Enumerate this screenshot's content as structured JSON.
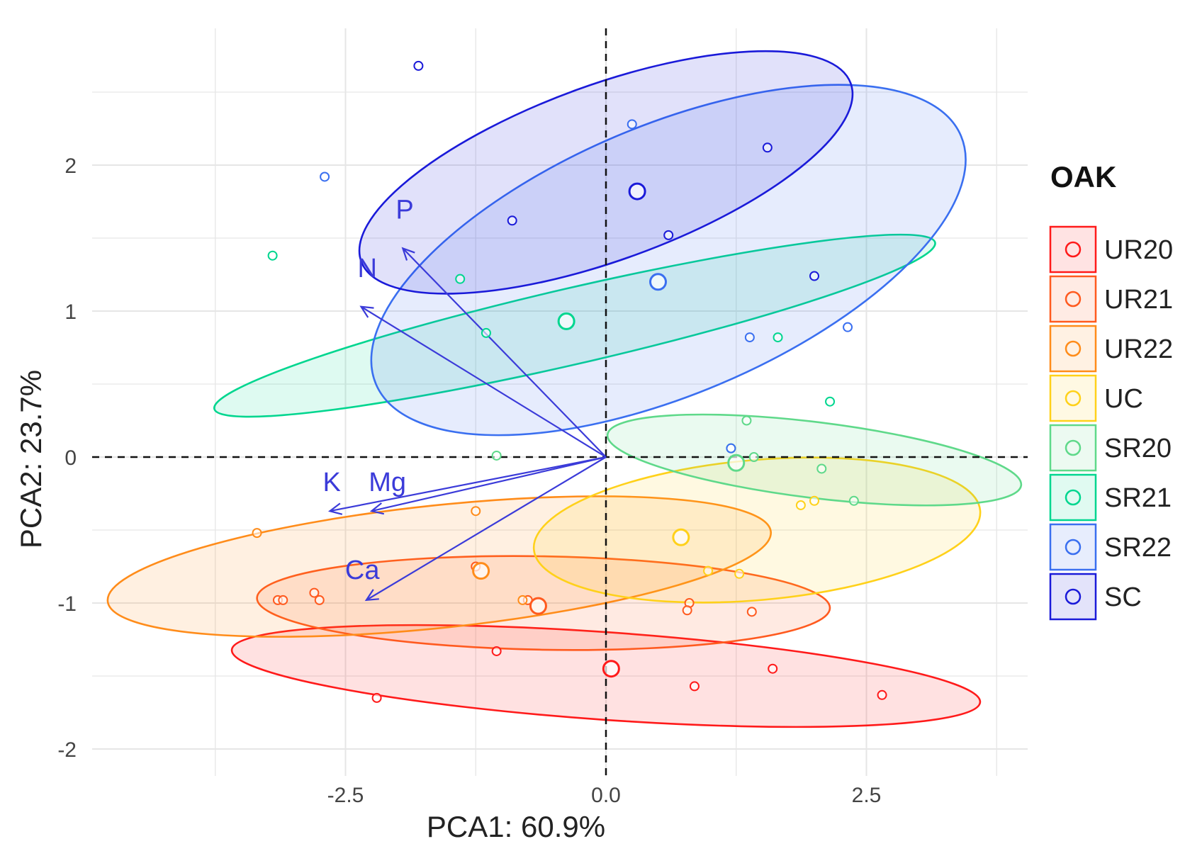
{
  "chart_data": {
    "type": "scatter",
    "xlabel": "PCA1: 60.9%",
    "ylabel": "PCA2: 23.7%",
    "xlim": [
      -4.9,
      4.1
    ],
    "ylim": [
      -2.1,
      2.9
    ],
    "x_ticks": [
      -2.5,
      0.0,
      2.5
    ],
    "x_tick_labels": [
      "-2.5",
      "0.0",
      "2.5"
    ],
    "y_ticks": [
      -2,
      -1,
      0,
      1,
      2
    ],
    "y_tick_labels": [
      "-2",
      "-1",
      "0",
      "1",
      "2"
    ],
    "grid": true,
    "legend": {
      "title": "OAK",
      "position": "right"
    },
    "series": [
      {
        "name": "UR20",
        "color": "#ff1a1a",
        "points": [
          [
            2.65,
            -1.63
          ],
          [
            0.85,
            -1.57
          ],
          [
            1.6,
            -1.45
          ],
          [
            -2.2,
            -1.65
          ],
          [
            -1.05,
            -1.33
          ]
        ],
        "centroid": [
          0.05,
          -1.45
        ],
        "ellipse": {
          "cx": 0.0,
          "cy": -1.5,
          "rx": 3.6,
          "ry": 0.3,
          "angle": -4
        }
      },
      {
        "name": "UR21",
        "color": "#ff5a1f",
        "points": [
          [
            -3.15,
            -0.98
          ],
          [
            -3.1,
            -0.98
          ],
          [
            -2.75,
            -0.98
          ],
          [
            -2.8,
            -0.93
          ],
          [
            -0.75,
            -0.98
          ],
          [
            -1.25,
            -0.75
          ],
          [
            0.8,
            -1.0
          ],
          [
            1.4,
            -1.06
          ],
          [
            0.78,
            -1.05
          ]
        ],
        "centroid": [
          -0.65,
          -1.02
        ],
        "ellipse": {
          "cx": -0.6,
          "cy": -1.0,
          "rx": 2.75,
          "ry": 0.32,
          "angle": -1
        }
      },
      {
        "name": "UR22",
        "color": "#ff8c1a",
        "points": [
          [
            -3.35,
            -0.52
          ],
          [
            -1.25,
            -0.37
          ],
          [
            -0.8,
            -0.98
          ]
        ],
        "centroid": [
          -1.2,
          -0.78
        ],
        "ellipse": {
          "cx": -1.6,
          "cy": -0.75,
          "rx": 3.2,
          "ry": 0.42,
          "angle": 6
        }
      },
      {
        "name": "UC",
        "color": "#ffd11a",
        "points": [
          [
            0.98,
            -0.78
          ],
          [
            1.28,
            -0.8
          ],
          [
            1.87,
            -0.33
          ],
          [
            2.0,
            -0.3
          ]
        ],
        "centroid": [
          0.72,
          -0.55
        ],
        "ellipse": {
          "cx": 1.45,
          "cy": -0.5,
          "rx": 2.15,
          "ry": 0.48,
          "angle": 5
        }
      },
      {
        "name": "SR20",
        "color": "#5fd98a",
        "points": [
          [
            1.35,
            0.25
          ],
          [
            1.42,
            0.0
          ],
          [
            2.07,
            -0.08
          ],
          [
            2.38,
            -0.3
          ],
          [
            -1.05,
            0.01
          ],
          [
            1.2,
            0.06
          ]
        ],
        "centroid": [
          1.25,
          -0.04
        ],
        "ellipse": {
          "cx": 2.0,
          "cy": -0.02,
          "rx": 2.0,
          "ry": 0.26,
          "angle": -7
        }
      },
      {
        "name": "SR21",
        "color": "#00d68f",
        "points": [
          [
            -3.2,
            1.38
          ],
          [
            -1.4,
            1.22
          ],
          [
            -1.15,
            0.85
          ],
          [
            1.65,
            0.82
          ],
          [
            2.15,
            0.38
          ]
        ],
        "centroid": [
          -0.38,
          0.93
        ],
        "ellipse": {
          "cx": -0.3,
          "cy": 0.9,
          "rx": 3.55,
          "ry": 0.26,
          "angle": 13
        }
      },
      {
        "name": "SR22",
        "color": "#3a6ff0",
        "points": [
          [
            -2.7,
            1.92
          ],
          [
            0.25,
            2.28
          ],
          [
            1.38,
            0.82
          ],
          [
            2.32,
            0.89
          ],
          [
            1.2,
            0.06
          ]
        ],
        "centroid": [
          0.5,
          1.2
        ],
        "ellipse": {
          "cx": 0.6,
          "cy": 1.35,
          "rx": 3.05,
          "ry": 0.92,
          "angle": 23
        }
      },
      {
        "name": "SC",
        "color": "#1a1ad9",
        "points": [
          [
            -1.8,
            2.68
          ],
          [
            -0.9,
            1.62
          ],
          [
            1.55,
            2.12
          ],
          [
            0.6,
            1.52
          ],
          [
            2.0,
            1.24
          ]
        ],
        "centroid": [
          0.3,
          1.82
        ],
        "ellipse": {
          "cx": 0.0,
          "cy": 1.95,
          "rx": 2.5,
          "ry": 0.6,
          "angle": 20
        }
      }
    ],
    "loadings": [
      {
        "name": "P",
        "x": -1.95,
        "y": 1.43
      },
      {
        "name": "N",
        "x": -2.35,
        "y": 1.03
      },
      {
        "name": "K",
        "x": -2.65,
        "y": -0.37
      },
      {
        "name": "Mg",
        "x": -2.25,
        "y": -0.37
      },
      {
        "name": "Ca",
        "x": -2.3,
        "y": -0.98
      }
    ]
  }
}
